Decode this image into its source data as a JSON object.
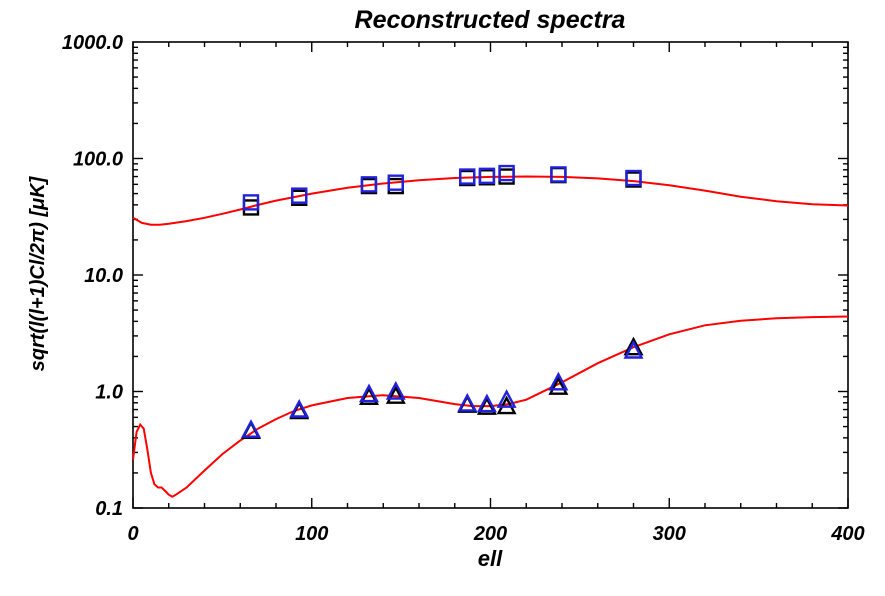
{
  "chart_data": {
    "type": "scatter",
    "title": "Reconstructed spectra",
    "xlabel": "ell",
    "ylabel": "sqrt(l(l+1)Cl/2π) [μK]",
    "xlim": [
      0,
      400
    ],
    "ylim": [
      0.1,
      1000.0
    ],
    "yscale": "log",
    "x_ticks": [
      0,
      100,
      200,
      300,
      400
    ],
    "y_ticks": [
      0.1,
      1.0,
      10.0,
      100.0,
      1000.0
    ],
    "x_tick_labels": [
      "0",
      "100",
      "200",
      "300",
      "400"
    ],
    "y_tick_labels": [
      "0.1",
      "1.0",
      "10.0",
      "100.0",
      "1000.0"
    ],
    "grid": false,
    "colors": {
      "curve": "#ff0000",
      "marker_black": "#000000",
      "marker_blue": "#2222dd"
    },
    "series": [
      {
        "marker": "square",
        "x": [
          66,
          93,
          132,
          147,
          187,
          198,
          209,
          238,
          280
        ],
        "values": [
          38,
          46,
          58,
          58,
          68,
          69,
          70,
          72,
          66
        ],
        "color": "#000000"
      },
      {
        "marker": "square",
        "x": [
          66,
          93,
          132,
          147,
          187,
          198,
          209,
          238,
          280
        ],
        "values": [
          42,
          48,
          60,
          62,
          70,
          71,
          75,
          73,
          68
        ],
        "color": "#2222dd"
      },
      {
        "marker": "triangle",
        "x": [
          66,
          93,
          132,
          147,
          187,
          198,
          209,
          238,
          280
        ],
        "values": [
          0.46,
          0.68,
          0.9,
          0.92,
          0.77,
          0.74,
          0.75,
          1.1,
          2.4
        ],
        "color": "#000000"
      },
      {
        "marker": "triangle",
        "x": [
          66,
          93,
          132,
          147,
          187,
          198,
          209,
          238,
          280
        ],
        "values": [
          0.47,
          0.7,
          0.95,
          1.0,
          0.79,
          0.78,
          0.85,
          1.2,
          2.25
        ],
        "color": "#2222dd"
      },
      {
        "line": true,
        "x": [
          0,
          5,
          10,
          15,
          20,
          30,
          40,
          50,
          60,
          70,
          80,
          100,
          120,
          140,
          160,
          180,
          200,
          220,
          240,
          260,
          280,
          300,
          320,
          340,
          360,
          380,
          400
        ],
        "values": [
          31,
          28,
          27,
          27,
          27.5,
          29,
          31,
          33.5,
          36.5,
          40,
          43.5,
          50,
          56,
          61,
          65,
          68,
          69.5,
          70,
          69.5,
          67.5,
          64,
          59,
          53,
          47,
          43,
          40.5,
          39.5
        ],
        "color": "#ff0000"
      },
      {
        "line": true,
        "x": [
          0,
          2,
          4,
          6,
          8,
          10,
          12,
          14,
          16,
          18,
          20,
          22,
          24,
          30,
          40,
          50,
          60,
          70,
          80,
          90,
          100,
          120,
          140,
          160,
          180,
          190,
          200,
          210,
          220,
          240,
          260,
          280,
          300,
          320,
          340,
          360,
          380,
          400
        ],
        "values": [
          0.26,
          0.45,
          0.52,
          0.48,
          0.32,
          0.2,
          0.16,
          0.15,
          0.15,
          0.14,
          0.13,
          0.125,
          0.13,
          0.15,
          0.21,
          0.29,
          0.38,
          0.48,
          0.58,
          0.68,
          0.76,
          0.88,
          0.93,
          0.88,
          0.78,
          0.75,
          0.75,
          0.78,
          0.85,
          1.2,
          1.75,
          2.4,
          3.1,
          3.7,
          4.05,
          4.25,
          4.35,
          4.4
        ],
        "color": "#ff0000"
      }
    ]
  }
}
